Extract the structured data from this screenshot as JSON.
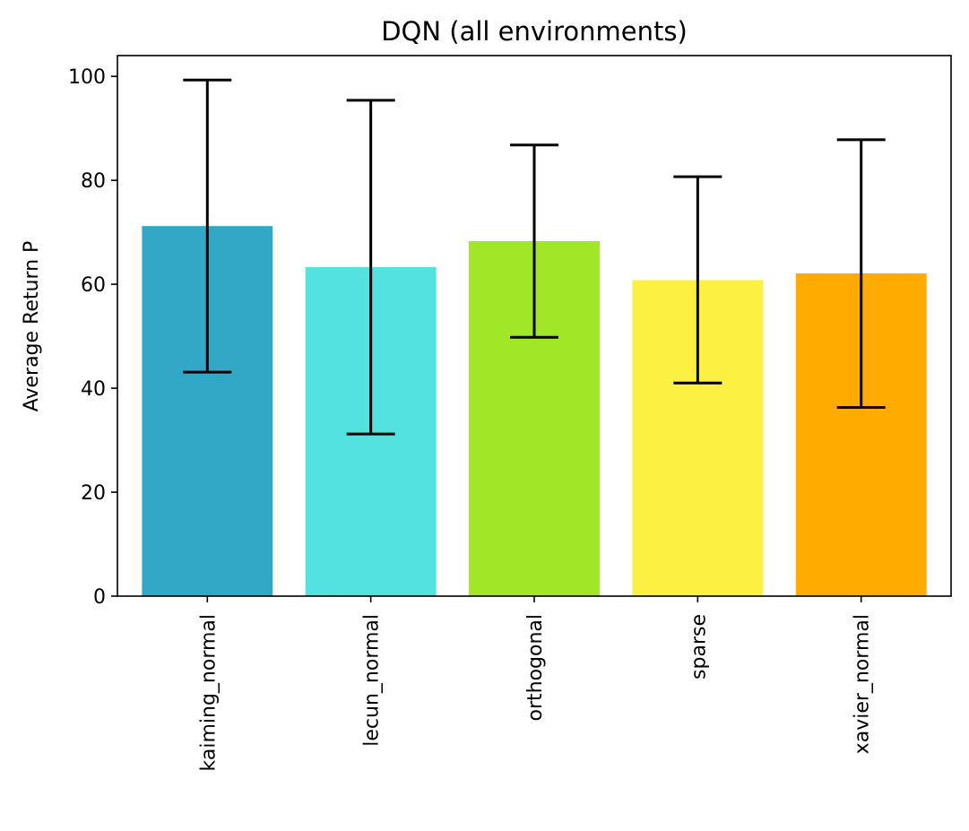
{
  "chart_data": {
    "type": "bar",
    "title": "DQN (all environments)",
    "xlabel": "",
    "ylabel": "Average Return P",
    "categories": [
      "kaiming_normal",
      "lecun_normal",
      "orthogonal",
      "sparse",
      "xavier_normal"
    ],
    "values": [
      71.2,
      63.3,
      68.3,
      60.8,
      62.1
    ],
    "error_low": [
      43.1,
      31.2,
      49.8,
      41.0,
      36.3
    ],
    "error_high": [
      99.3,
      95.4,
      86.8,
      80.7,
      87.8
    ],
    "colors": [
      "#33a8c6",
      "#53e2e0",
      "#a2e628",
      "#fcf043",
      "#ffab00"
    ],
    "ylim": [
      0,
      104
    ],
    "yticks": [
      0,
      20,
      40,
      60,
      80,
      100
    ],
    "grid": false,
    "legend": "none"
  }
}
